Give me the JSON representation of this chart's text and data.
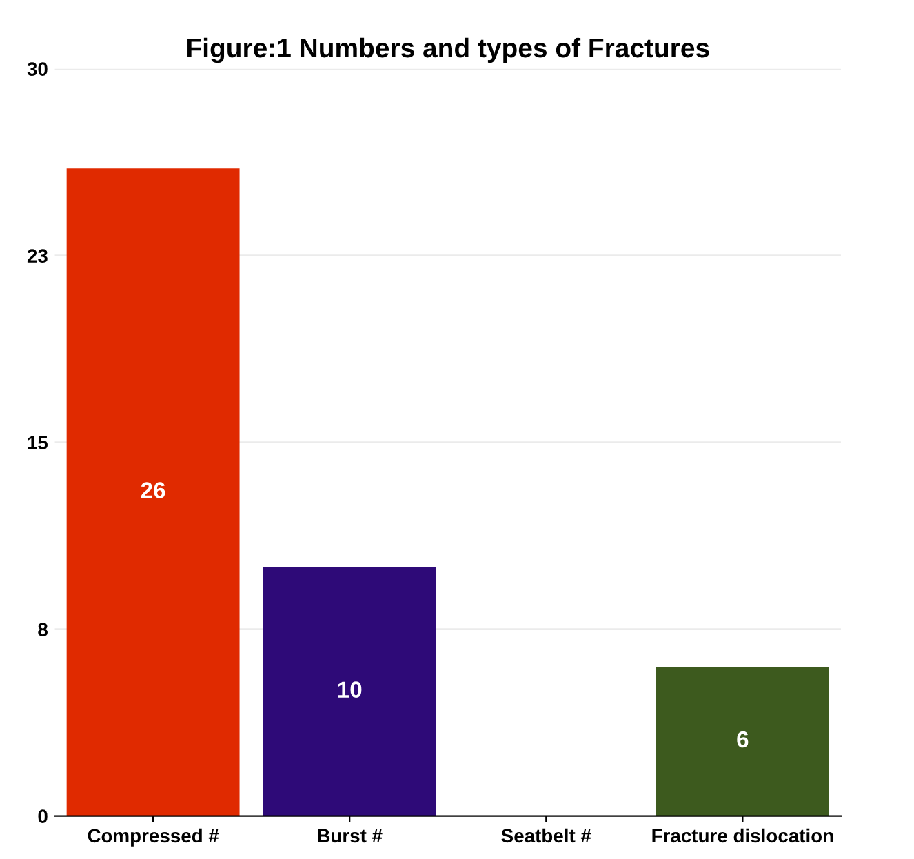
{
  "chart_data": {
    "type": "bar",
    "title": "Figure:1 Numbers and types of Fractures",
    "categories": [
      "Compressed #",
      "Burst #",
      "Seatbelt #",
      "Fracture dislocation"
    ],
    "values": [
      26,
      10,
      0,
      6
    ],
    "colors": [
      "#e02a00",
      "#2e0a78",
      "#e02a00",
      "#3d5a1e"
    ],
    "value_labels": [
      "26",
      "10",
      null,
      "6"
    ],
    "ylim": [
      0,
      30
    ],
    "yticks": [
      0,
      {
        "value": 7.5,
        "label": "8"
      },
      15,
      {
        "value": 22.5,
        "label": "23"
      },
      30
    ],
    "grid": "y"
  }
}
